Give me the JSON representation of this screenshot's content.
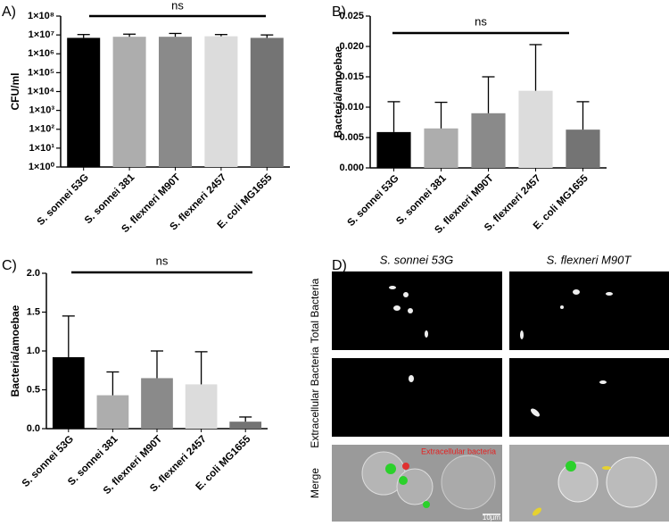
{
  "chart_data": [
    {
      "type": "bar",
      "label": "A)",
      "y_label": "CFU/ml",
      "annotation": "ns",
      "log_scale": true,
      "categories": [
        "S. sonnei 53G",
        "S. sonnei 381",
        "S. flexneri M90T",
        "S. flexneri 2457",
        "E. coli MG1655"
      ],
      "values": [
        7000000,
        8000000,
        8000000,
        8500000,
        7000000
      ],
      "errors": [
        3500000,
        3000000,
        4000000,
        2000000,
        3000000
      ],
      "colors": [
        "#000000",
        "#adadad",
        "#8a8a8a",
        "#dcdcdc",
        "#747474"
      ],
      "ylim": [
        1,
        100000000
      ],
      "yticks": [
        {
          "value": 1,
          "label": "1×10⁰"
        },
        {
          "value": 10,
          "label": "1×10¹"
        },
        {
          "value": 100,
          "label": "1×10²"
        },
        {
          "value": 1000,
          "label": "1×10³"
        },
        {
          "value": 10000,
          "label": "1×10⁴"
        },
        {
          "value": 100000,
          "label": "1×10⁵"
        },
        {
          "value": 1000000,
          "label": "1×10⁶"
        },
        {
          "value": 10000000,
          "label": "1×10⁷"
        },
        {
          "value": 100000000,
          "label": "1×10⁸"
        }
      ]
    },
    {
      "type": "bar",
      "label": "B)",
      "y_label": "Bacteria/amoebae",
      "annotation": "ns",
      "log_scale": false,
      "categories": [
        "S. sonnei 53G",
        "S. sonnei 381",
        "S. flexneri M90T",
        "S. flexneri 2457",
        "E. coli MG1655"
      ],
      "values": [
        0.0059,
        0.0065,
        0.009,
        0.0127,
        0.0063
      ],
      "errors": [
        0.005,
        0.0043,
        0.006,
        0.0076,
        0.0046
      ],
      "colors": [
        "#000000",
        "#adadad",
        "#8a8a8a",
        "#dcdcdc",
        "#747474"
      ],
      "ylim": [
        0,
        0.025
      ],
      "yticks": [
        {
          "value": 0,
          "label": "0.000"
        },
        {
          "value": 0.005,
          "label": "0.005"
        },
        {
          "value": 0.01,
          "label": "0.010"
        },
        {
          "value": 0.015,
          "label": "0.015"
        },
        {
          "value": 0.02,
          "label": "0.020"
        },
        {
          "value": 0.025,
          "label": "0.025"
        }
      ]
    },
    {
      "type": "bar",
      "label": "C)",
      "y_label": "Bacteria/amoebae",
      "annotation": "ns",
      "log_scale": false,
      "categories": [
        "S. sonnei 53G",
        "S. sonnei 381",
        "S. flexneri M90T",
        "S. flexneri 2457",
        "E. coli MG1655"
      ],
      "values": [
        0.92,
        0.43,
        0.65,
        0.57,
        0.09
      ],
      "errors": [
        0.53,
        0.3,
        0.35,
        0.42,
        0.06
      ],
      "colors": [
        "#000000",
        "#adadad",
        "#8a8a8a",
        "#dcdcdc",
        "#747474"
      ],
      "ylim": [
        0,
        2
      ],
      "yticks": [
        {
          "value": 0,
          "label": "0.0"
        },
        {
          "value": 0.5,
          "label": "0.5"
        },
        {
          "value": 1,
          "label": "1.0"
        },
        {
          "value": 1.5,
          "label": "1.5"
        },
        {
          "value": 2,
          "label": "2.0"
        }
      ]
    }
  ],
  "panel_d": {
    "label": "D)",
    "columns": [
      "S. sonnei 53G",
      "S. flexneri M90T"
    ],
    "rows": [
      "Total Bacteria",
      "Extracellular Bacteria",
      "Merge"
    ],
    "overlay": "Extracellular bacteria",
    "scale_bar": "10µm"
  }
}
